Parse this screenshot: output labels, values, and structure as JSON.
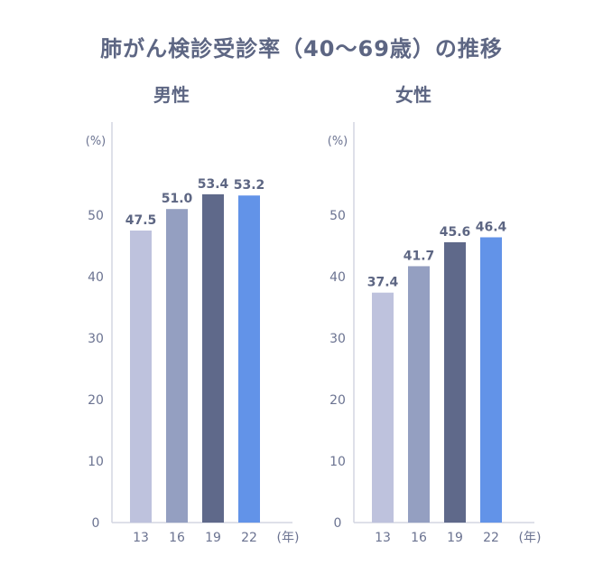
{
  "title": "肺がん検診受診率（40〜69歳）の推移",
  "chart_data": [
    {
      "type": "bar",
      "title": "男性",
      "categories": [
        "13",
        "16",
        "19",
        "22"
      ],
      "values": [
        47.5,
        51.0,
        53.4,
        53.2
      ],
      "value_labels": [
        "47.5",
        "51.0",
        "53.4",
        "53.2"
      ],
      "ylabel": "(%)",
      "xlabel": "(年)",
      "ylim": [
        0,
        60
      ],
      "yticks": [
        "0",
        "10",
        "20",
        "30",
        "40",
        "50"
      ],
      "grid": false,
      "bar_colors": [
        "#bec2dd",
        "#949fc1",
        "#5f698a",
        "#6293e8"
      ]
    },
    {
      "type": "bar",
      "title": "女性",
      "categories": [
        "13",
        "16",
        "19",
        "22"
      ],
      "values": [
        37.4,
        41.7,
        45.6,
        46.4
      ],
      "value_labels": [
        "37.4",
        "41.7",
        "45.6",
        "46.4"
      ],
      "ylabel": "(%)",
      "xlabel": "(年)",
      "ylim": [
        0,
        60
      ],
      "yticks": [
        "0",
        "10",
        "20",
        "30",
        "40",
        "50"
      ],
      "grid": false,
      "bar_colors": [
        "#bec2dd",
        "#949fc1",
        "#5f698a",
        "#6293e8"
      ]
    }
  ],
  "colors": {
    "text": "#5d6683",
    "axis": "#d3d6e2"
  }
}
